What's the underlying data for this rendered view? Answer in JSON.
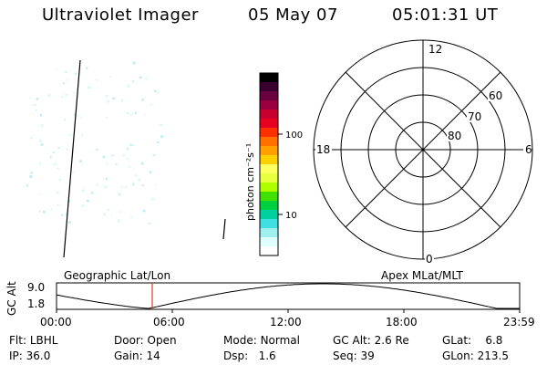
{
  "header": {
    "title": "Ultraviolet Imager",
    "date": "05 May 07",
    "time": "05:01:31 UT"
  },
  "colorbar": {
    "unit_label": "photon cm⁻²s⁻¹",
    "ticks": [
      "100",
      "10"
    ],
    "colors": [
      "#000000",
      "#3a0030",
      "#6a0040",
      "#9a0040",
      "#c80030",
      "#e80020",
      "#ff3000",
      "#ff7000",
      "#ffa000",
      "#ffd000",
      "#ffff60",
      "#e8ff40",
      "#b0ff00",
      "#40e000",
      "#00d040",
      "#00d0a0",
      "#40e0e0",
      "#a0f0f0",
      "#e0ffff",
      "#ffffff"
    ]
  },
  "polar": {
    "mlt_labels": {
      "top": "12",
      "left": "18",
      "right": "6",
      "bottom": "0"
    },
    "lat_labels": [
      "60",
      "70",
      "80"
    ]
  },
  "timeline": {
    "left_label": "Geographic Lat/Lon",
    "right_label": "Apex MLat/MLT",
    "axis_name": "GC Alt",
    "y_ticks": [
      "9.0",
      "1.8"
    ],
    "x_ticks": [
      "00:00",
      "06:00",
      "12:00",
      "18:00",
      "23:59"
    ],
    "marker_color": "#d04020"
  },
  "status": {
    "flt": {
      "label": "Flt:",
      "value": "LBHL"
    },
    "ip": {
      "label": "IP:",
      "value": "36.0"
    },
    "door": {
      "label": "Door:",
      "value": "Open"
    },
    "gain": {
      "label": "Gain:",
      "value": "14"
    },
    "mode": {
      "label": "Mode:",
      "value": "Normal"
    },
    "dsp": {
      "label": "Dsp:",
      "value": "1.6"
    },
    "gcalt": {
      "label": "GC Alt:",
      "value": "2.6 Re"
    },
    "seq": {
      "label": "Seq:",
      "value": "39"
    },
    "glat": {
      "label": "GLat:",
      "value": "6.8"
    },
    "glon": {
      "label": "GLon:",
      "value": "213.5"
    }
  }
}
